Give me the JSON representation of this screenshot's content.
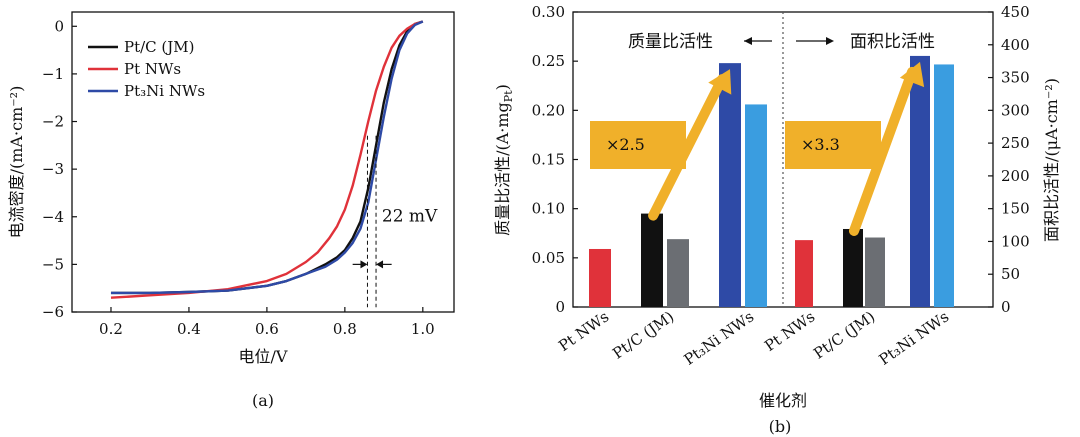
{
  "colors": {
    "black": "#111111",
    "red": "#e0323a",
    "blue": "#2e4aa6",
    "gray": "#6b6e73",
    "lightblue": "#3a9de0",
    "arrow": "#f0b02a"
  },
  "chart_data": [
    {
      "type": "line",
      "panel_label": "(a)",
      "xlabel": "电位/V",
      "ylabel": "电流密度/(mA·cm⁻²)",
      "xlim": [
        0.1,
        1.08
      ],
      "ylim": [
        -6,
        0.3
      ],
      "xticks": [
        0.2,
        0.4,
        0.6,
        0.8,
        1.0
      ],
      "xtick_labels": [
        "0.2",
        "0.4",
        "0.6",
        "0.8",
        "1.0"
      ],
      "yticks": [
        0,
        -1,
        -2,
        -3,
        -4,
        -5,
        -6
      ],
      "ytick_labels": [
        "0",
        "−1",
        "−2",
        "−3",
        "−4",
        "−5",
        "−6"
      ],
      "legend_position": "top-left",
      "annotation": "22 mV",
      "series": [
        {
          "name": "Pt/C (JM)",
          "color": "black",
          "x": [
            0.2,
            0.3,
            0.4,
            0.5,
            0.6,
            0.65,
            0.7,
            0.75,
            0.78,
            0.8,
            0.82,
            0.84,
            0.86,
            0.88,
            0.9,
            0.92,
            0.94,
            0.96,
            0.98,
            1.0
          ],
          "y": [
            -5.6,
            -5.6,
            -5.58,
            -5.55,
            -5.45,
            -5.35,
            -5.2,
            -5.0,
            -4.85,
            -4.7,
            -4.45,
            -4.1,
            -3.4,
            -2.5,
            -1.6,
            -0.9,
            -0.4,
            -0.1,
            0.05,
            0.1
          ]
        },
        {
          "name": "Pt NWs",
          "color": "red",
          "x": [
            0.2,
            0.3,
            0.4,
            0.5,
            0.6,
            0.65,
            0.7,
            0.73,
            0.76,
            0.78,
            0.8,
            0.82,
            0.84,
            0.86,
            0.88,
            0.9,
            0.92,
            0.94,
            0.96,
            0.98,
            1.0
          ],
          "y": [
            -5.7,
            -5.65,
            -5.6,
            -5.52,
            -5.35,
            -5.2,
            -4.95,
            -4.75,
            -4.45,
            -4.2,
            -3.85,
            -3.35,
            -2.7,
            -2.0,
            -1.35,
            -0.85,
            -0.45,
            -0.2,
            -0.05,
            0.05,
            0.1
          ]
        },
        {
          "name": "Pt₃Ni NWs",
          "color": "blue",
          "x": [
            0.2,
            0.3,
            0.4,
            0.5,
            0.6,
            0.65,
            0.7,
            0.75,
            0.78,
            0.8,
            0.82,
            0.84,
            0.86,
            0.88,
            0.9,
            0.92,
            0.94,
            0.96,
            0.98,
            1.0
          ],
          "y": [
            -5.6,
            -5.6,
            -5.58,
            -5.55,
            -5.45,
            -5.35,
            -5.2,
            -5.05,
            -4.9,
            -4.75,
            -4.55,
            -4.25,
            -3.7,
            -2.8,
            -1.9,
            -1.1,
            -0.5,
            -0.15,
            0.03,
            0.1
          ]
        }
      ]
    },
    {
      "type": "bar",
      "panel_label": "(b)",
      "xlabel": "催化剂",
      "ylabel_left": "质量比活性/(A·mg",
      "ylabel_left_sub": "Pt",
      "ylabel_left_end": ")",
      "ylabel_right": "面积比活性/(μA·cm⁻²)",
      "ylim_left": [
        0,
        0.3
      ],
      "ylim_right": [
        0,
        450
      ],
      "yticks_left": [
        "0",
        "0.05",
        "0.10",
        "0.15",
        "0.20",
        "0.25",
        "0.30"
      ],
      "yticks_right": [
        "0",
        "50",
        "100",
        "150",
        "200",
        "250",
        "300",
        "350",
        "400",
        "450"
      ],
      "categories": [
        "Pt NWs",
        "Pt/C (JM)",
        "Pt₃Ni NWs",
        "Pt NWs",
        "Pt/C (JM)",
        "Pt₃Ni NWs"
      ],
      "groups": [
        {
          "title": "质量比活性",
          "multiplier": "×2.5",
          "bars": [
            {
              "category": "Pt NWs",
              "value": 0.059,
              "color": "red"
            },
            {
              "category": "Pt/C (JM)",
              "value": 0.095,
              "color": "black"
            },
            {
              "category": "Pt/C (JM)",
              "value": 0.069,
              "color": "gray"
            },
            {
              "category": "Pt₃Ni NWs",
              "value": 0.248,
              "color": "blue"
            },
            {
              "category": "Pt₃Ni NWs",
              "value": 0.206,
              "color": "lightblue"
            }
          ]
        },
        {
          "title": "面积比活性",
          "multiplier": "×3.3",
          "bars": [
            {
              "category": "Pt NWs",
              "value": 102,
              "color": "red"
            },
            {
              "category": "Pt/C (JM)",
              "value": 119,
              "color": "black"
            },
            {
              "category": "Pt/C (JM)",
              "value": 106,
              "color": "gray"
            },
            {
              "category": "Pt₃Ni NWs",
              "value": 383,
              "color": "blue"
            },
            {
              "category": "Pt₃Ni NWs",
              "value": 370,
              "color": "lightblue"
            }
          ]
        }
      ]
    }
  ]
}
